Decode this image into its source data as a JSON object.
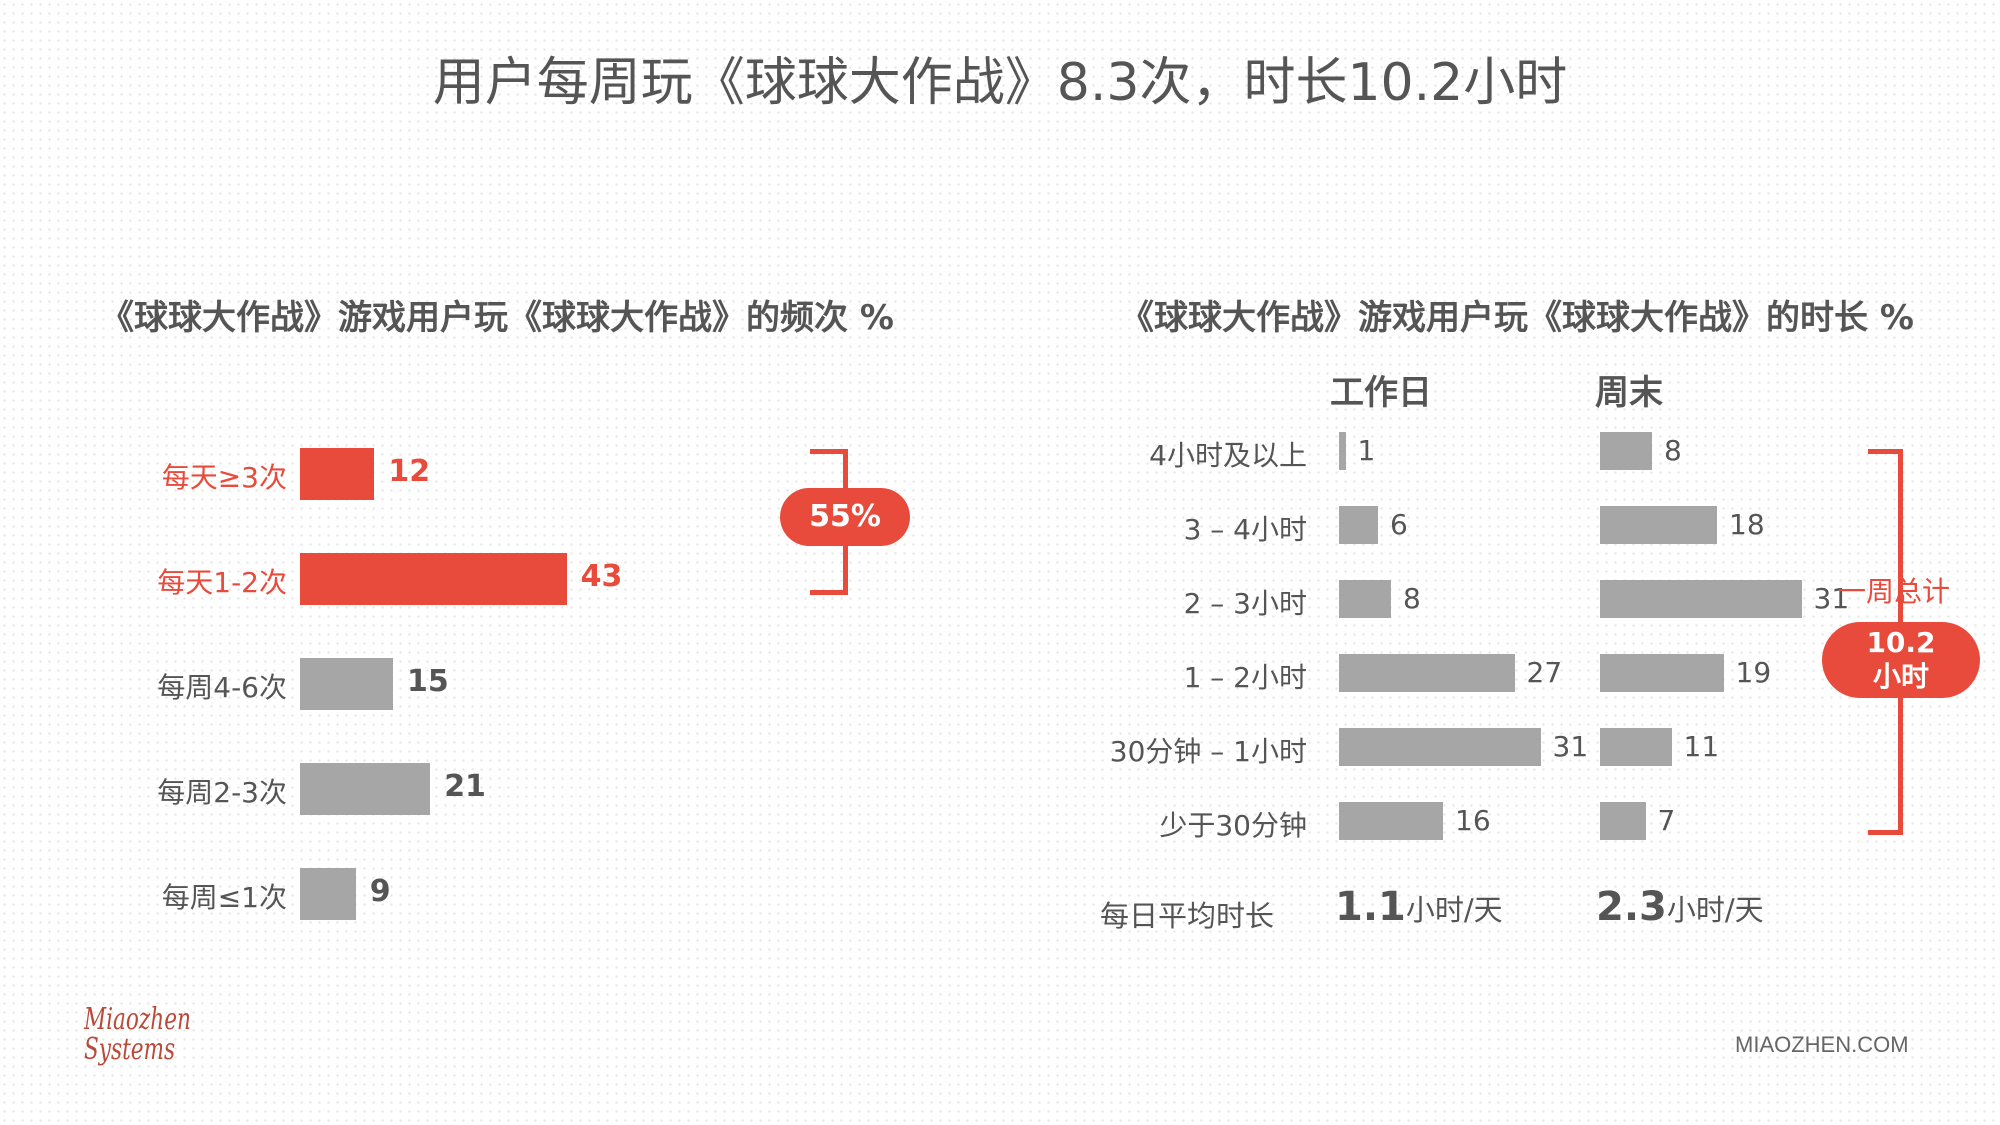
{
  "title": "用户每周玩《球球大作战》8.3次，时长10.2小时",
  "footer": "MIAOZHEN.COM",
  "logo": {
    "line1": "Miaozhen",
    "line2": "Systems"
  },
  "colors": {
    "accent": "#e84b3c",
    "bar": "#a6a6a6",
    "text": "#555555"
  },
  "chart_data": [
    {
      "type": "bar",
      "orientation": "horizontal",
      "title": "《球球大作战》游戏用户玩《球球大作战》的频次 %",
      "categories": [
        "每天≥3次",
        "每天1-2次",
        "每周4-6次",
        "每周2-3次",
        "每周≤1次"
      ],
      "values": [
        12,
        43,
        15,
        21,
        9
      ],
      "highlight": [
        true,
        true,
        false,
        false,
        false
      ],
      "annotation": "55%"
    },
    {
      "type": "bar",
      "orientation": "horizontal",
      "title": "《球球大作战》游戏用户玩《球球大作战》的时长 %",
      "categories": [
        "4小时及以上",
        "3 – 4小时",
        "2 – 3小时",
        "1 – 2小时",
        "30分钟 – 1小时",
        "少于30分钟"
      ],
      "series": [
        {
          "name": "工作日",
          "values": [
            1,
            6,
            8,
            27,
            31,
            16
          ]
        },
        {
          "name": "周末",
          "values": [
            8,
            18,
            31,
            19,
            11,
            7
          ]
        }
      ],
      "average_label": "每日平均时长",
      "averages": [
        {
          "value": "1.1",
          "unit": "小时/天"
        },
        {
          "value": "2.3",
          "unit": "小时/天"
        }
      ],
      "total_label": "一周总计",
      "total_value": "10.2",
      "total_unit": "小时"
    }
  ]
}
